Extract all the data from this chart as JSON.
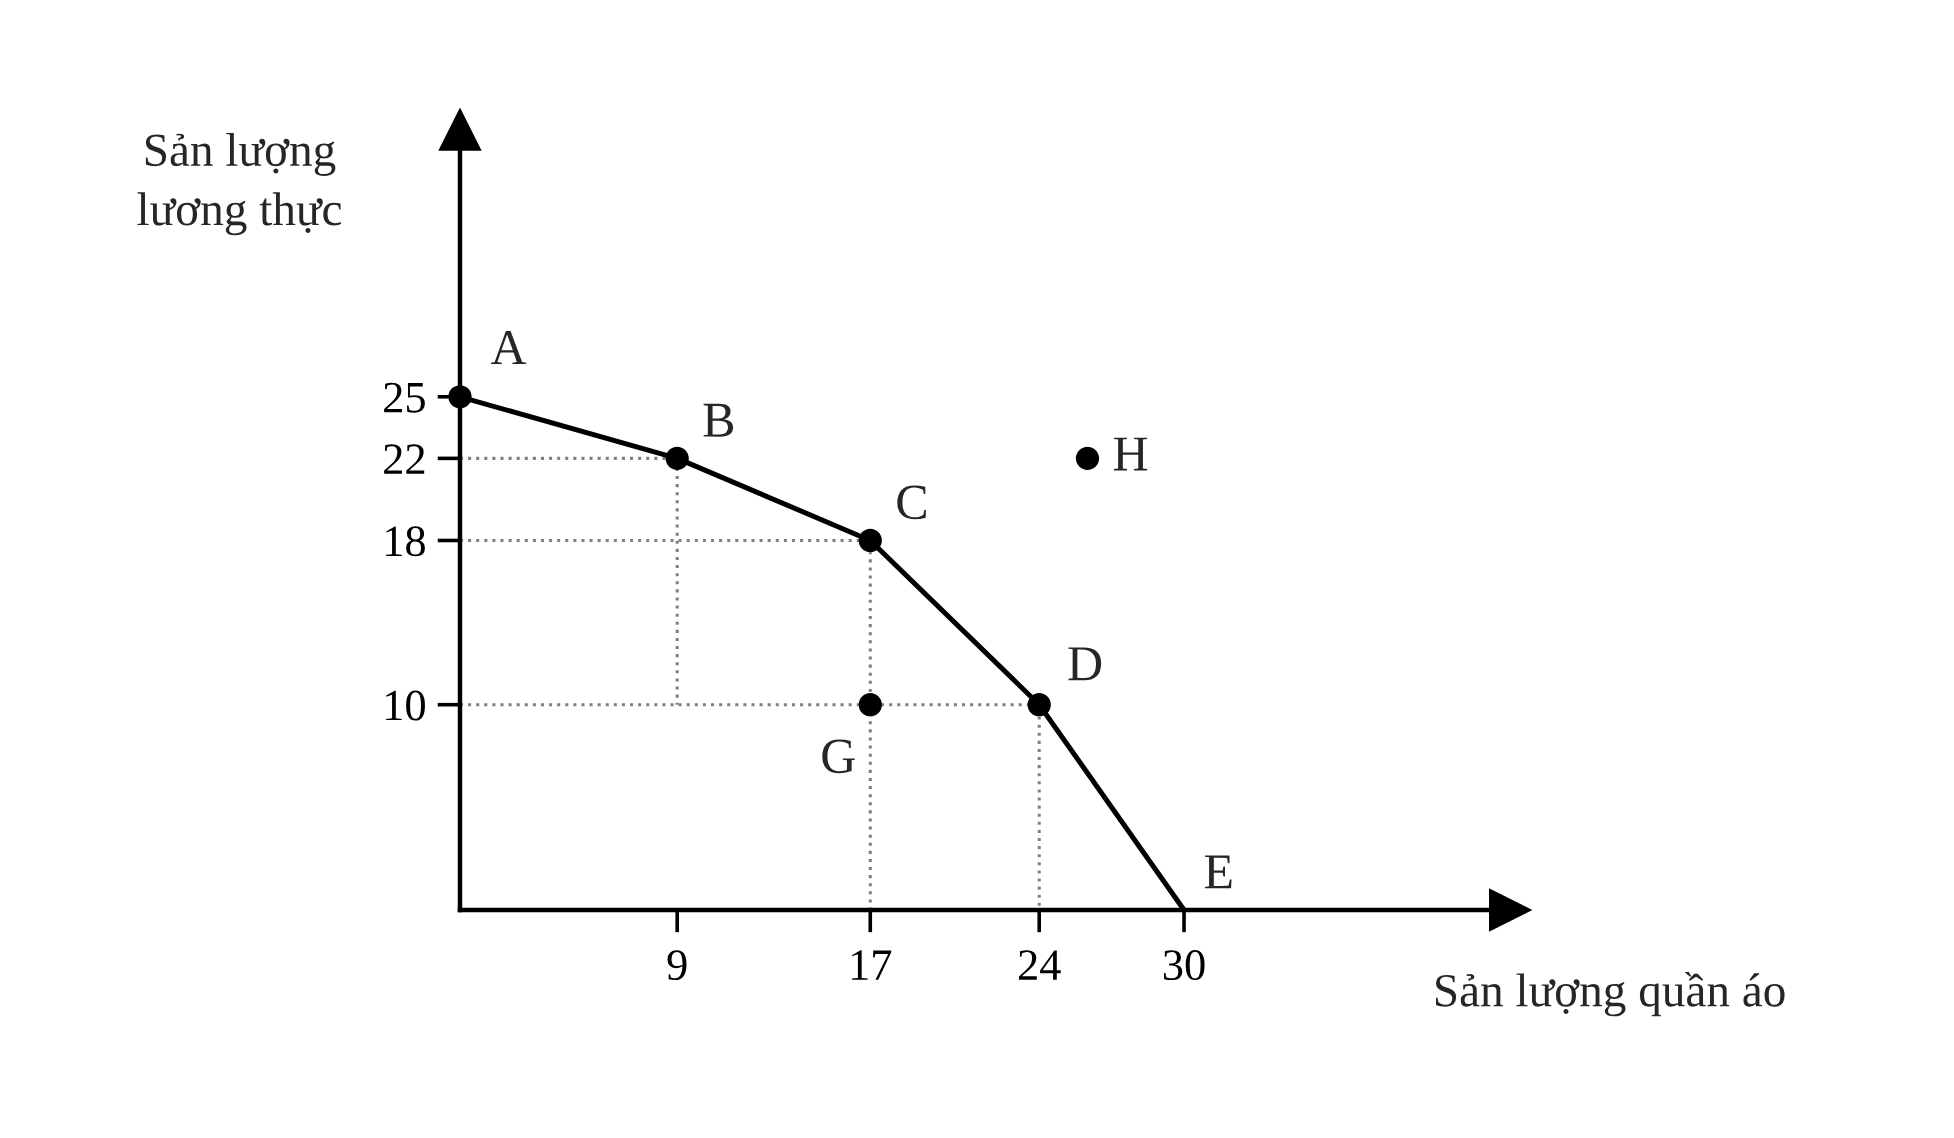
{
  "chart_data": {
    "type": "line",
    "xlabel": "Sản lượng quần áo",
    "ylabel": "Sản lượng\nlương thực",
    "series": [
      {
        "color": "#000000",
        "x": [
          0,
          9,
          17,
          24,
          30
        ],
        "values": [
          25,
          22,
          18,
          10,
          0
        ],
        "marker": "none",
        "line_style": "solid"
      },
      {
        "type": "scatter",
        "color": "#000000",
        "x": [
          0,
          9,
          17,
          24,
          17,
          26
        ],
        "values": [
          25,
          22,
          18,
          10,
          10,
          22
        ],
        "marker": "circle"
      },
      {
        "color": "#808080",
        "x": [
          0,
          9,
          9
        ],
        "values": [
          22,
          22,
          10
        ],
        "marker": "none",
        "line_style": "dotted"
      },
      {
        "color": "#808080",
        "x": [
          0,
          17,
          17
        ],
        "values": [
          18,
          18,
          0
        ],
        "marker": "none",
        "line_style": "dotted"
      },
      {
        "color": "#808080",
        "x": [
          0,
          24,
          24
        ],
        "values": [
          10,
          10,
          0
        ],
        "marker": "none",
        "line_style": "dotted"
      }
    ],
    "xlim": [
      0,
      43.5
    ],
    "ylim": [
      0,
      38
    ],
    "xticks": [
      9,
      17,
      24,
      30
    ],
    "yticks": [
      10,
      18,
      22,
      25
    ],
    "annotations": [
      {
        "text": "A",
        "x": 0,
        "y": 25
      },
      {
        "text": "B",
        "x": 9,
        "y": 22
      },
      {
        "text": "C",
        "x": 17,
        "y": 18
      },
      {
        "text": "D",
        "x": 24,
        "y": 10
      },
      {
        "text": "E",
        "x": 30,
        "y": 0
      },
      {
        "text": "G",
        "x": 17,
        "y": 10
      },
      {
        "text": "H",
        "x": 26,
        "y": 22
      }
    ]
  }
}
